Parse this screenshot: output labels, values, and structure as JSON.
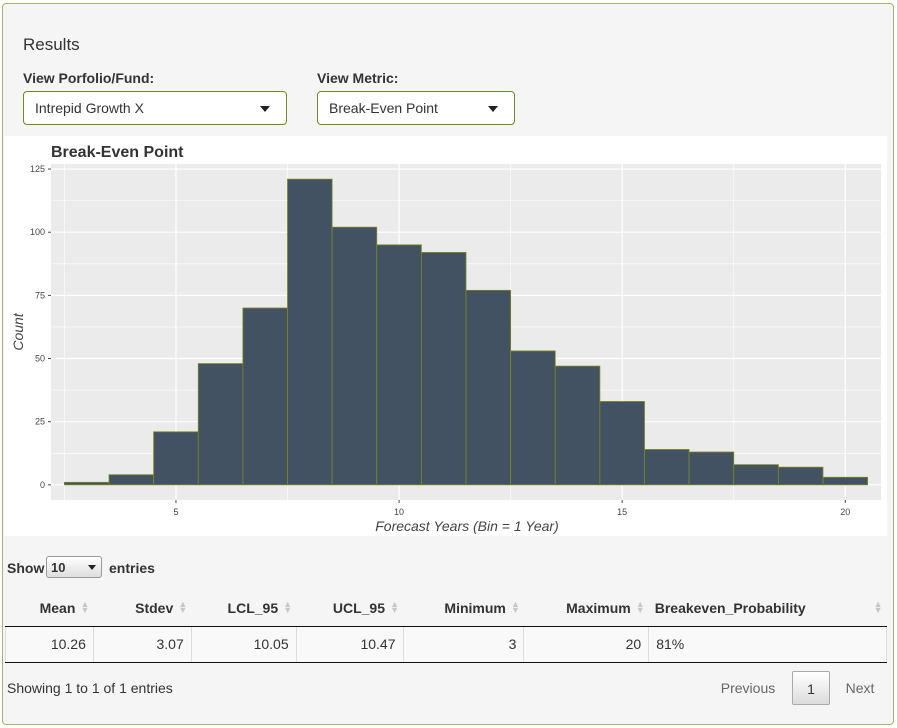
{
  "results_title": "Results",
  "portfolio": {
    "label": "View Porfolio/Fund:",
    "selected": "Intrepid Growth X"
  },
  "metric": {
    "label": "View Metric:",
    "selected": "Break-Even Point"
  },
  "chart_data": {
    "type": "bar",
    "title": "Break-Even Point",
    "xlabel": "Forecast Years (Bin = 1 Year)",
    "ylabel": "Count",
    "x_centers": [
      3,
      4,
      5,
      6,
      7,
      8,
      9,
      10,
      11,
      12,
      13,
      14,
      15,
      16,
      17,
      18,
      19,
      20
    ],
    "bin_width": 1,
    "values": [
      1,
      4,
      21,
      48,
      70,
      121,
      102,
      95,
      92,
      77,
      53,
      47,
      33,
      14,
      13,
      8,
      7,
      3
    ],
    "xlim": [
      2.2,
      20.8
    ],
    "ylim": [
      -6,
      127
    ],
    "x_ticks": [
      "5",
      "10",
      "15",
      "20"
    ],
    "y_ticks": [
      "0",
      "25",
      "50",
      "75",
      "100",
      "125"
    ],
    "grid": true,
    "colors": {
      "fill": "#435263",
      "stroke": "#7a8a1c",
      "panel": "#ebebeb",
      "grid": "#ffffff"
    }
  },
  "table": {
    "length_prefix": "Show",
    "length_value": "10",
    "length_suffix": "entries",
    "columns": [
      "Mean",
      "Stdev",
      "LCL_95",
      "UCL_95",
      "Minimum",
      "Maximum",
      "Breakeven_Probability"
    ],
    "rows": [
      [
        "10.26",
        "3.07",
        "10.05",
        "10.47",
        "3",
        "20",
        "81%"
      ]
    ],
    "info": "Showing 1 to 1 of 1 entries",
    "pagination": {
      "previous": "Previous",
      "current": "1",
      "next": "Next"
    }
  },
  "colors": {
    "accent_border": "#6f8a1e",
    "panel_bg": "#f5f5f5"
  }
}
